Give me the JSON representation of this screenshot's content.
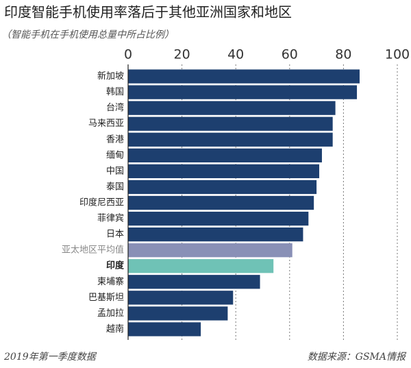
{
  "chart_data": {
    "type": "hbar",
    "title": "印度智能手机使用率落后于其他亚洲国家和地区",
    "subtitle": "（智能手机在手机使用总量中所占比例）",
    "categories": [
      "新加坡",
      "韩国",
      "台湾",
      "马来西亚",
      "香港",
      "缅甸",
      "中国",
      "泰国",
      "印度尼西亚",
      "菲律宾",
      "日本",
      "亚太地区平均值",
      "印度",
      "柬埔寨",
      "巴基斯坦",
      "孟加拉",
      "越南"
    ],
    "values": [
      86,
      85,
      77,
      76,
      76,
      72,
      71,
      70,
      69,
      67,
      65,
      61,
      54,
      49,
      39,
      37,
      27
    ],
    "colors": [
      "#1d3f6f",
      "#1d3f6f",
      "#1d3f6f",
      "#1d3f6f",
      "#1d3f6f",
      "#1d3f6f",
      "#1d3f6f",
      "#1d3f6f",
      "#1d3f6f",
      "#1d3f6f",
      "#1d3f6f",
      "#8990b6",
      "#6fc2b6",
      "#1d3f6f",
      "#1d3f6f",
      "#1d3f6f",
      "#1d3f6f"
    ],
    "xlim": [
      0,
      100
    ],
    "xticks": [
      0,
      20,
      40,
      60,
      80,
      100
    ],
    "grid": true,
    "note": "2019年第一季度数据",
    "source": "数据来源：GSMA情报"
  }
}
